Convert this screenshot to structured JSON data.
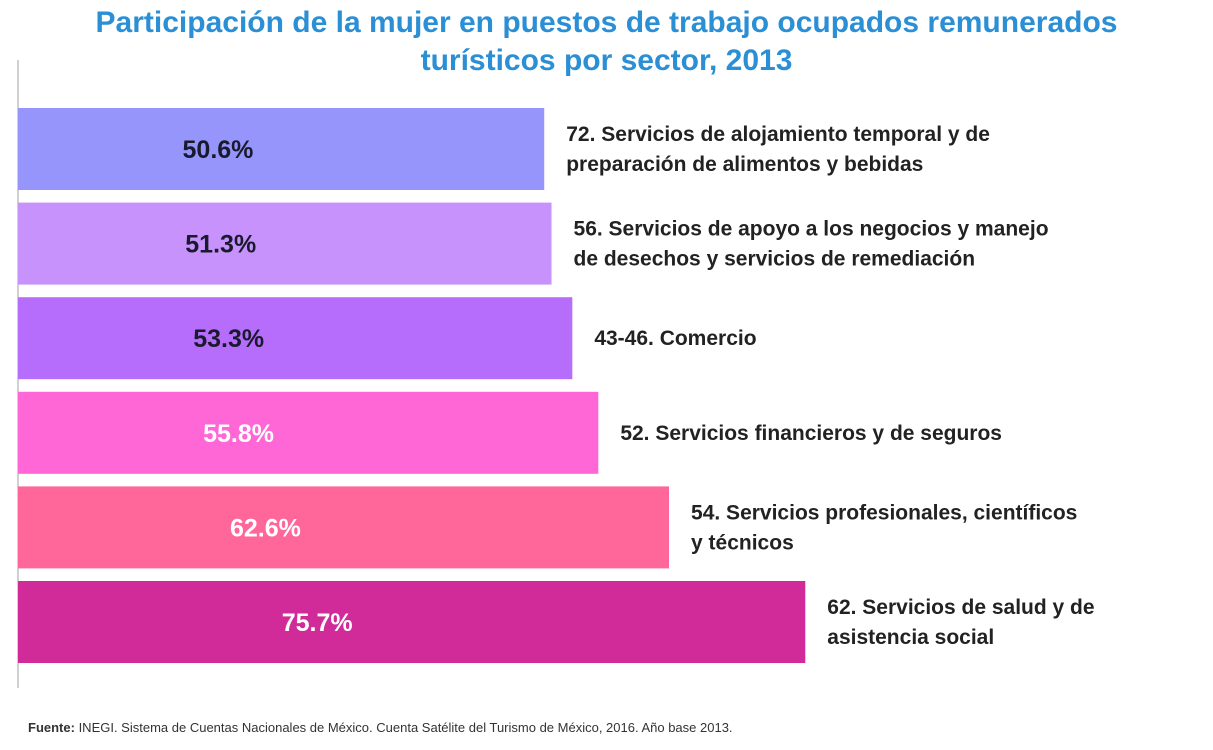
{
  "chart_data": {
    "type": "bar",
    "orientation": "horizontal",
    "title_line1": "Participación de la mujer en puestos de trabajo ocupados remunerados",
    "title_line2": "turísticos por sector, 2013",
    "categories": [
      [
        "72. Servicios de alojamiento temporal y de",
        "preparación de alimentos y bebidas"
      ],
      [
        "56. Servicios de apoyo a los negocios y manejo",
        "de desechos y servicios de remediación"
      ],
      [
        "43-46. Comercio"
      ],
      [
        "52. Servicios financieros y de seguros"
      ],
      [
        "54. Servicios profesionales, científicos",
        "y técnicos"
      ],
      [
        "62. Servicios de salud y de",
        "asistencia social"
      ]
    ],
    "values": [
      50.6,
      51.3,
      53.3,
      55.8,
      62.6,
      75.7
    ],
    "value_labels": [
      "50.6%",
      "51.3%",
      "53.3%",
      "55.8%",
      "62.6%",
      "75.7%"
    ],
    "colors": [
      "#9595fb",
      "#c792fb",
      "#b76dfb",
      "#ff66d6",
      "#ff6699",
      "#d12a99"
    ],
    "label_colors": [
      "#1a1a2e",
      "#1a1a2e",
      "#1a1a2e",
      "#ffffff",
      "#ffffff",
      "#ffffff"
    ],
    "xlim": [
      0,
      100
    ],
    "grid": false,
    "legend": "none"
  },
  "source": {
    "label": "Fuente:",
    "text": " INEGI. Sistema de Cuentas Nacionales de México. Cuenta Satélite del Turismo de México, 2016. Año base 2013."
  }
}
